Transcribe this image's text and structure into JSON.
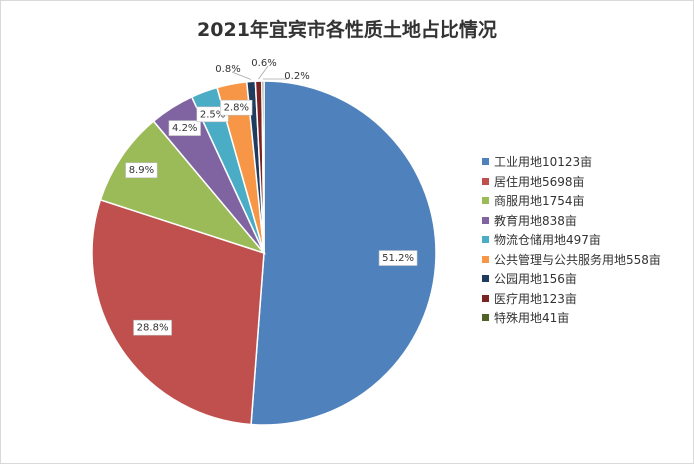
{
  "chart_data": {
    "type": "pie",
    "title": "2021年宜宾市各性质土地占比情况",
    "slices": [
      {
        "label": "工业用地10123亩",
        "value": 51.2,
        "value_label": "51.2%",
        "color": "#4f81bd"
      },
      {
        "label": "居住用地5698亩",
        "value": 28.8,
        "value_label": "28.8%",
        "color": "#c0504d"
      },
      {
        "label": "商服用地1754亩",
        "value": 8.9,
        "value_label": "8.9%",
        "color": "#9bbb59"
      },
      {
        "label": "教育用地838亩",
        "value": 4.2,
        "value_label": "4.2%",
        "color": "#8064a2"
      },
      {
        "label": "物流仓储用地497亩",
        "value": 2.5,
        "value_label": "2.5%",
        "color": "#4bacc6"
      },
      {
        "label": "公共管理与公共服务用地558亩",
        "value": 2.8,
        "value_label": "2.8%",
        "color": "#f79646"
      },
      {
        "label": "公园用地156亩",
        "value": 0.8,
        "value_label": "0.8%",
        "color": "#1f3b5e"
      },
      {
        "label": "医疗用地123亩",
        "value": 0.6,
        "value_label": "0.6%",
        "color": "#7b2222"
      },
      {
        "label": "特殊用地41亩",
        "value": 0.2,
        "value_label": "0.2%",
        "color": "#4f6228"
      }
    ],
    "legend_position": "right"
  }
}
